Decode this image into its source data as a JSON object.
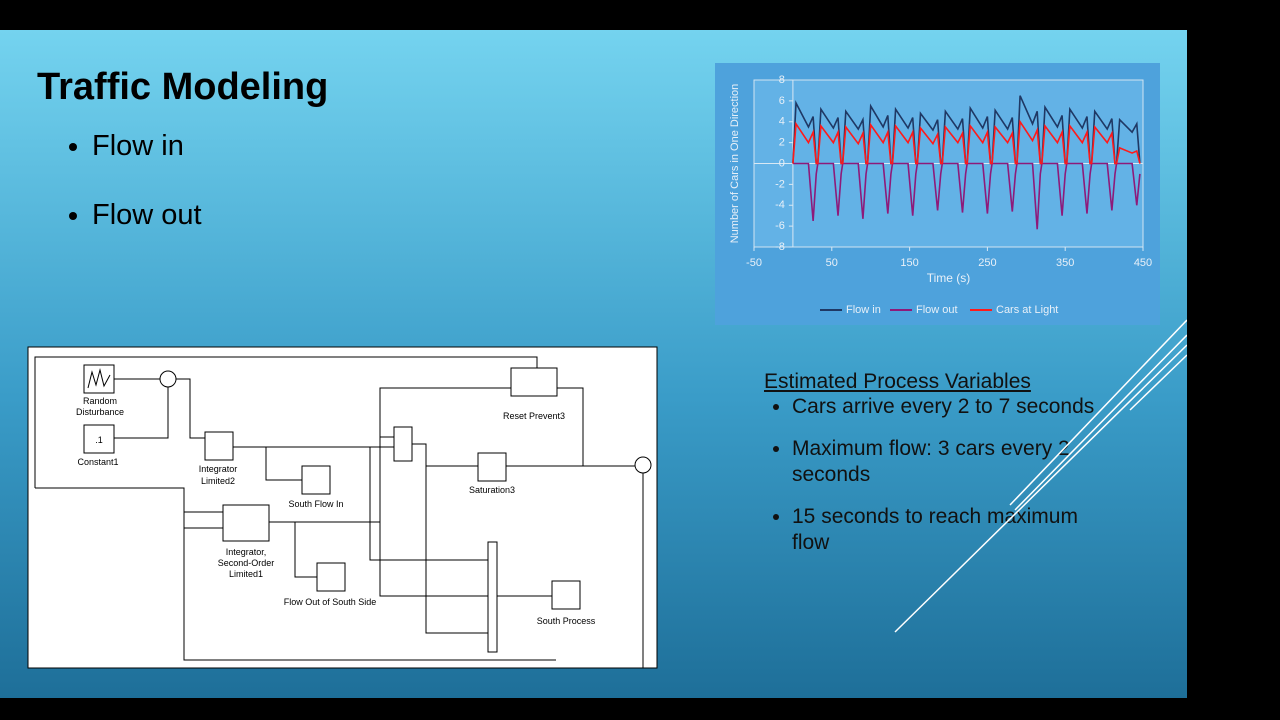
{
  "slide": {
    "title": "Traffic Modeling",
    "bullets": [
      "Flow in",
      "Flow out"
    ]
  },
  "chart_data": {
    "type": "line",
    "xlabel": "Time (s)",
    "ylabel": "Number of Cars in One Direction",
    "x": [
      0,
      4,
      20,
      26,
      30,
      32,
      36,
      52,
      58,
      62,
      64,
      68,
      84,
      90,
      94,
      96,
      100,
      116,
      122,
      126,
      128,
      132,
      148,
      154,
      158,
      160,
      164,
      180,
      186,
      190,
      192,
      196,
      212,
      218,
      222,
      224,
      228,
      244,
      250,
      254,
      256,
      260,
      276,
      282,
      286,
      288,
      292,
      308,
      314,
      318,
      320,
      324,
      340,
      346,
      350,
      352,
      356,
      372,
      378,
      382,
      384,
      388,
      404,
      410,
      414,
      416,
      420,
      436,
      442,
      446
    ],
    "series": [
      {
        "name": "Flow in",
        "color": "#1f3864",
        "values": [
          0,
          5.8,
          3.5,
          4.5,
          0,
          0,
          5.2,
          3.4,
          4.4,
          0,
          0,
          5,
          3.3,
          4.2,
          0,
          0,
          5.5,
          3.5,
          4.6,
          0,
          0,
          5.2,
          3.4,
          4.4,
          0,
          0,
          4.8,
          3.2,
          4.2,
          0,
          0,
          5,
          3.3,
          4.3,
          0,
          0,
          5.3,
          3.4,
          4.5,
          0,
          0,
          5.1,
          3.3,
          4.4,
          0,
          0,
          6.5,
          3.8,
          5,
          0,
          0,
          5.4,
          3.5,
          4.6,
          0,
          0,
          5.2,
          3.4,
          4.5,
          0,
          0,
          5,
          3.3,
          4.3,
          0,
          0,
          4.2,
          3,
          3.8,
          0
        ]
      },
      {
        "name": "Flow out",
        "color": "#8e1a7a",
        "values": [
          0,
          0,
          0,
          -5.5,
          -1,
          0,
          0,
          0,
          -5,
          -1,
          0,
          0,
          0,
          -5.3,
          -1,
          0,
          0,
          0,
          -4.8,
          -1,
          0,
          0,
          0,
          -5,
          -1,
          0,
          0,
          0,
          -4.5,
          -1,
          0,
          0,
          0,
          -4.7,
          -1,
          0,
          0,
          0,
          -4.8,
          -1,
          0,
          0,
          0,
          -4.6,
          -1,
          0,
          0,
          0,
          -6.3,
          -1,
          0,
          0,
          0,
          -5,
          -1,
          0,
          0,
          0,
          -4.8,
          -1,
          0,
          0,
          0,
          -4.5,
          -1,
          0,
          0,
          0,
          -4,
          -1
        ]
      },
      {
        "name": "Cars at Light",
        "color": "#ff1a1a",
        "values": [
          0,
          3.8,
          2,
          3,
          0,
          0,
          3.6,
          2,
          3,
          0,
          0,
          3.5,
          1.9,
          2.9,
          0,
          0,
          3.7,
          2,
          3,
          0,
          0,
          3.6,
          2,
          3,
          0,
          0,
          3.4,
          1.9,
          2.8,
          0,
          0,
          3.5,
          2,
          2.9,
          0,
          0,
          3.6,
          2,
          3,
          0,
          0,
          3.5,
          2,
          2.9,
          0,
          0,
          4,
          2.2,
          3.2,
          0,
          0,
          3.6,
          2,
          3,
          0,
          0,
          3.6,
          2,
          3,
          0,
          0,
          3.5,
          2,
          2.9,
          0,
          0,
          1.5,
          1,
          1.2,
          0
        ]
      }
    ],
    "xlim": [
      -50,
      450
    ],
    "xticks": [
      -50,
      50,
      150,
      250,
      350,
      450
    ],
    "ylim": [
      -8,
      8
    ],
    "yticks": [
      -8,
      -6,
      -4,
      -2,
      0,
      2,
      4,
      6,
      8
    ],
    "grid": false,
    "legend": "bottom"
  },
  "diagram": {
    "constant": ".1",
    "blocks": [
      {
        "label": [
          "Random",
          "Disturbance"
        ]
      },
      {
        "label": [
          "Constant1"
        ]
      },
      {
        "label": [
          "Integrator",
          "Limited2"
        ]
      },
      {
        "label": [
          "South Flow In"
        ]
      },
      {
        "label": [
          "Integrator,",
          "Second-Order",
          "Limited1"
        ]
      },
      {
        "label": [
          "Flow Out of South Side"
        ]
      },
      {
        "label": [
          "Reset Prevent3"
        ]
      },
      {
        "label": [
          "Saturation3"
        ]
      },
      {
        "label": [
          "South Process"
        ]
      }
    ]
  },
  "notes": {
    "heading": "Estimated Process Variables",
    "bullets": [
      "Cars arrive every 2 to 7 seconds",
      "Maximum flow: 3 cars every 2 seconds",
      "15 seconds to reach maximum flow"
    ]
  }
}
